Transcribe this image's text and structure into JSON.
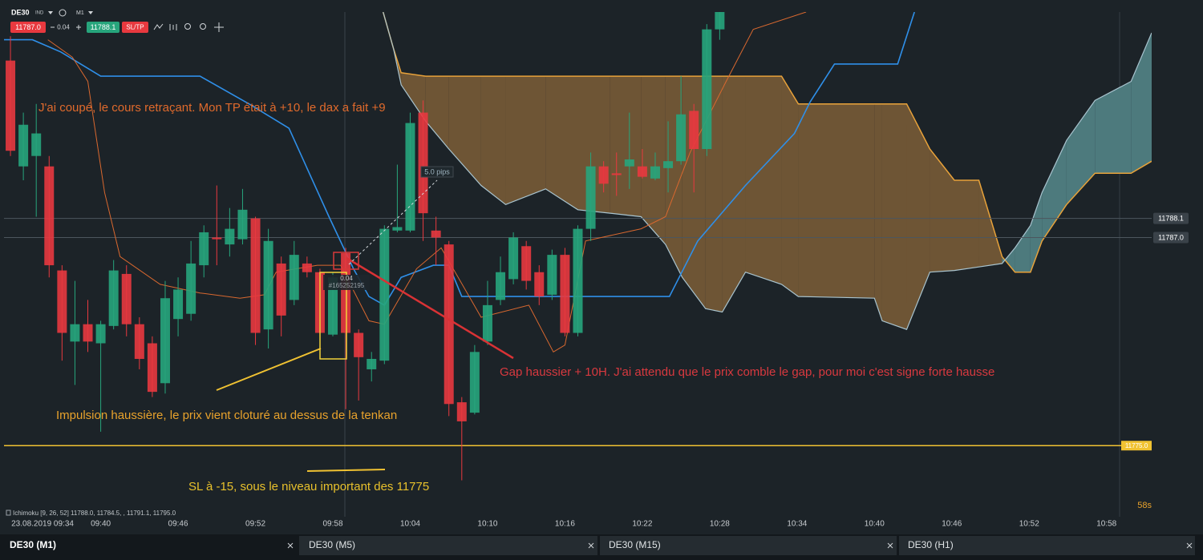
{
  "toolbar": {
    "symbol": "DE30",
    "market": "IND",
    "timeframe": "M1",
    "sell_price": "11787.0",
    "spread": "0.04",
    "buy_price": "11788.1",
    "sltp": "SL/TP"
  },
  "chart_data": {
    "type": "candlestick",
    "up_color": "#27a57c",
    "down_color": "#e8393f",
    "xlim": [
      -0.5,
      88.5
    ],
    "ylim": [
      11770.9,
      11800.0
    ],
    "xticks": [
      {
        "value": 1,
        "label": "23.08.2019 09:34"
      },
      {
        "value": 7,
        "label": "09:40"
      },
      {
        "value": 13,
        "label": "09:46"
      },
      {
        "value": 19,
        "label": "09:52"
      },
      {
        "value": 25,
        "label": "09:58"
      },
      {
        "value": 31,
        "label": "10:04"
      },
      {
        "value": 37,
        "label": "10:10"
      },
      {
        "value": 43,
        "label": "10:16"
      },
      {
        "value": 49,
        "label": "10:22"
      },
      {
        "value": 55,
        "label": "10:28"
      },
      {
        "value": 61,
        "label": "10:34"
      },
      {
        "value": 67,
        "label": "10:40"
      },
      {
        "value": 73,
        "label": "10:46"
      },
      {
        "value": 79,
        "label": "10:52"
      },
      {
        "value": 85,
        "label": "10:58"
      }
    ],
    "candles": [
      {
        "o": 11797.2,
        "h": 11798.6,
        "l": 11791.7,
        "c": 11792.0
      },
      {
        "o": 11791.1,
        "h": 11794.2,
        "l": 11790.3,
        "c": 11793.5
      },
      {
        "o": 11791.7,
        "h": 11794.7,
        "l": 11788.2,
        "c": 11793.0
      },
      {
        "o": 11791.1,
        "h": 11791.7,
        "l": 11784.7,
        "c": 11785.4
      },
      {
        "o": 11785.1,
        "h": 11785.4,
        "l": 11779.9,
        "c": 11781.5
      },
      {
        "o": 11781.0,
        "h": 11784.5,
        "l": 11778.5,
        "c": 11782.0
      },
      {
        "o": 11782.0,
        "h": 11783.4,
        "l": 11780.4,
        "c": 11781.0
      },
      {
        "o": 11780.9,
        "h": 11782.2,
        "l": 11775.8,
        "c": 11782.0
      },
      {
        "o": 11781.9,
        "h": 11785.7,
        "l": 11781.7,
        "c": 11785.1
      },
      {
        "o": 11784.9,
        "h": 11785.4,
        "l": 11781.3,
        "c": 11782.0
      },
      {
        "o": 11782.0,
        "h": 11782.4,
        "l": 11779.4,
        "c": 11780.0
      },
      {
        "o": 11780.9,
        "h": 11781.3,
        "l": 11777.8,
        "c": 11778.1
      },
      {
        "o": 11778.6,
        "h": 11784.5,
        "l": 11778.0,
        "c": 11783.5
      },
      {
        "o": 11782.3,
        "h": 11784.7,
        "l": 11781.3,
        "c": 11784.0
      },
      {
        "o": 11782.6,
        "h": 11786.8,
        "l": 11782.2,
        "c": 11785.5
      },
      {
        "o": 11785.4,
        "h": 11787.7,
        "l": 11784.7,
        "c": 11787.3
      },
      {
        "o": 11787.0,
        "h": 11790.0,
        "l": 11785.4,
        "c": 11786.9
      },
      {
        "o": 11786.6,
        "h": 11788.7,
        "l": 11785.9,
        "c": 11787.5
      },
      {
        "o": 11786.9,
        "h": 11789.8,
        "l": 11786.6,
        "c": 11788.6
      },
      {
        "o": 11788.1,
        "h": 11788.2,
        "l": 11780.8,
        "c": 11781.5
      },
      {
        "o": 11781.7,
        "h": 11787.5,
        "l": 11780.6,
        "c": 11786.8
      },
      {
        "o": 11785.5,
        "h": 11785.9,
        "l": 11781.3,
        "c": 11782.5
      },
      {
        "o": 11783.4,
        "h": 11786.8,
        "l": 11783.1,
        "c": 11786.0
      },
      {
        "o": 11785.5,
        "h": 11785.9,
        "l": 11784.7,
        "c": 11785.0
      },
      {
        "o": 11785.0,
        "h": 11785.2,
        "l": 11781.3,
        "c": 11781.5
      },
      {
        "o": 11781.4,
        "h": 11785.0,
        "l": 11781.3,
        "c": 11784.7
      },
      {
        "o": 11786.1,
        "h": 11786.4,
        "l": 11777.1,
        "c": 11781.5
      },
      {
        "o": 11781.5,
        "h": 11781.7,
        "l": 11777.6,
        "c": 11780.1
      },
      {
        "o": 11779.4,
        "h": 11780.4,
        "l": 11778.7,
        "c": 11780.0
      },
      {
        "o": 11779.9,
        "h": 11787.7,
        "l": 11779.7,
        "c": 11787.5
      },
      {
        "o": 11787.4,
        "h": 11791.2,
        "l": 11787.3,
        "c": 11787.6
      },
      {
        "o": 11787.4,
        "h": 11794.2,
        "l": 11787.3,
        "c": 11793.6
      },
      {
        "o": 11794.2,
        "h": 11794.9,
        "l": 11786.8,
        "c": 11788.4
      },
      {
        "o": 11787.4,
        "h": 11788.2,
        "l": 11785.4,
        "c": 11787.0
      },
      {
        "o": 11786.6,
        "h": 11786.8,
        "l": 11776.7,
        "c": 11777.4
      },
      {
        "o": 11777.5,
        "h": 11777.8,
        "l": 11773.0,
        "c": 11776.4
      },
      {
        "o": 11776.9,
        "h": 11780.8,
        "l": 11776.8,
        "c": 11780.4
      },
      {
        "o": 11781.0,
        "h": 11784.5,
        "l": 11780.8,
        "c": 11783.1
      },
      {
        "o": 11783.4,
        "h": 11785.9,
        "l": 11783.1,
        "c": 11785.0
      },
      {
        "o": 11784.6,
        "h": 11787.3,
        "l": 11784.3,
        "c": 11787.0
      },
      {
        "o": 11786.5,
        "h": 11786.8,
        "l": 11784.0,
        "c": 11784.5
      },
      {
        "o": 11785.0,
        "h": 11785.4,
        "l": 11783.1,
        "c": 11783.6
      },
      {
        "o": 11783.7,
        "h": 11786.3,
        "l": 11783.4,
        "c": 11786.0
      },
      {
        "o": 11786.0,
        "h": 11786.4,
        "l": 11781.3,
        "c": 11781.5
      },
      {
        "o": 11781.5,
        "h": 11787.7,
        "l": 11781.3,
        "c": 11787.5
      },
      {
        "o": 11787.5,
        "h": 11791.9,
        "l": 11786.8,
        "c": 11791.1
      },
      {
        "o": 11791.1,
        "h": 11791.4,
        "l": 11789.6,
        "c": 11790.1
      },
      {
        "o": 11790.7,
        "h": 11791.9,
        "l": 11789.4,
        "c": 11790.6
      },
      {
        "o": 11791.1,
        "h": 11794.2,
        "l": 11789.8,
        "c": 11791.5
      },
      {
        "o": 11791.1,
        "h": 11792.1,
        "l": 11790.4,
        "c": 11790.5
      },
      {
        "o": 11790.4,
        "h": 11791.9,
        "l": 11790.3,
        "c": 11791.1
      },
      {
        "o": 11791.0,
        "h": 11793.7,
        "l": 11789.6,
        "c": 11791.4
      },
      {
        "o": 11791.4,
        "h": 11796.3,
        "l": 11791.2,
        "c": 11794.1
      },
      {
        "o": 11794.3,
        "h": 11794.7,
        "l": 11789.6,
        "c": 11792.1
      },
      {
        "o": 11792.1,
        "h": 11799.3,
        "l": 11791.7,
        "c": 11799.0
      },
      {
        "o": 11799.0,
        "h": 11800.0,
        "l": 11798.4,
        "c": 11800.0
      }
    ],
    "tenkan": {
      "color": "#d9682f",
      "x": [
        2.9,
        4.8,
        6.0,
        7.3,
        8.5,
        11.6,
        14.7,
        17.8,
        19.7,
        20.6,
        23.8,
        25.6,
        27.8,
        29.0,
        31.5,
        33.4,
        36.5,
        40.2,
        42.1,
        43.0,
        44.6,
        48.9,
        50.8,
        52.7,
        55.5,
        57.6,
        61.7
      ],
      "values": [
        11798.4,
        11797.4,
        11796.0,
        11789.6,
        11785.9,
        11784.3,
        11783.8,
        11783.5,
        11783.7,
        11785.0,
        11785.4,
        11785.4,
        11782.2,
        11782.0,
        11785.2,
        11786.4,
        11782.4,
        11783.1,
        11780.4,
        11780.8,
        11786.8,
        11787.5,
        11788.2,
        11791.9,
        11796.0,
        11799.0,
        11800.0
      ]
    },
    "kijun": {
      "color": "#2f8fe8",
      "x": [
        -0.5,
        1.7,
        3.9,
        7.0,
        14.7,
        18.5,
        21.6,
        24.7,
        26.6,
        27.8,
        29.0,
        30.3,
        32.8,
        34.0,
        35.0,
        51.1,
        53.3,
        57.0,
        60.8,
        62.0,
        63.9,
        68.8,
        70.1
      ],
      "values": [
        11798.4,
        11798.4,
        11797.7,
        11796.3,
        11796.3,
        11794.7,
        11793.3,
        11788.2,
        11785.2,
        11783.6,
        11783.1,
        11784.7,
        11785.4,
        11785.4,
        11783.6,
        11783.6,
        11786.8,
        11790.0,
        11793.0,
        11794.8,
        11797.0,
        11797.0,
        11800.0
      ]
    },
    "cloud": {
      "color_a": "#e8a23a",
      "color_b": "#a9c4cf",
      "fill_bear": "#6e5535",
      "fill_bull": "#4d7a7d",
      "x": [
        28.9,
        29.7,
        30.3,
        32.2,
        34.0,
        36.5,
        38.4,
        41.5,
        44.0,
        46.5,
        48.9,
        50.8,
        52.1,
        53.9,
        55.2,
        57.0,
        59.8,
        61.1,
        67.0,
        67.6,
        69.5,
        71.3,
        73.2,
        75.1,
        76.9,
        77.9,
        79.1,
        80.0,
        81.9,
        84.1,
        86.9,
        88.5
      ],
      "span_a": [
        11800.0,
        11797.9,
        11796.5,
        11796.3,
        11796.3,
        11796.3,
        11796.3,
        11796.3,
        11796.3,
        11796.3,
        11796.3,
        11796.3,
        11796.3,
        11796.3,
        11796.3,
        11796.3,
        11796.3,
        11794.7,
        11794.7,
        11794.7,
        11794.7,
        11792.1,
        11790.3,
        11790.3,
        11785.9,
        11785.0,
        11785.0,
        11786.8,
        11788.9,
        11790.7,
        11790.7,
        11791.4
      ],
      "span_b": [
        11800.0,
        11797.9,
        11795.8,
        11793.7,
        11792.1,
        11790.0,
        11788.9,
        11789.8,
        11788.6,
        11788.4,
        11788.2,
        11786.6,
        11784.7,
        11782.9,
        11782.7,
        11785.0,
        11784.3,
        11783.6,
        11783.5,
        11782.2,
        11781.7,
        11785.0,
        11785.1,
        11785.3,
        11785.5,
        11786.4,
        11787.7,
        11789.6,
        11792.6,
        11794.9,
        11796.0,
        11798.8
      ]
    },
    "price_lines": [
      {
        "level": 11788.1,
        "color": "#4c565e"
      },
      {
        "level": {
          "value": 11787.0,
          "label": "11787.0"
        },
        "color": "#4c565e"
      },
      {
        "level": {
          "value": 11775.0,
          "label": "11775.0"
        },
        "color": "#f0c232"
      }
    ],
    "indicator_legend": "Ichimoku [9, 26, 52] 11788.0, 11784.5, , 11791.1, 11795.0",
    "countdown": "58s"
  },
  "annotations": [
    "J'ai coupé, le cours retraçant. Mon TP était à +10, le dax a fait +9",
    "Gap haussier + 10H. J'ai attendu que le prix comble le gap, pour moi c'est signe forte hausse",
    "Impulsion haussière, le prix vient cloturé au dessus de la tenkan",
    "SL à -15, sous le niveau important des 11775"
  ],
  "trade_marker": {
    "spread": "0.04",
    "order_id": "#165252195",
    "measure": "5.0 pips"
  },
  "tabs": [
    "DE30 (M1)",
    "DE30 (M5)",
    "DE30 (M15)",
    "DE30 (H1)"
  ]
}
